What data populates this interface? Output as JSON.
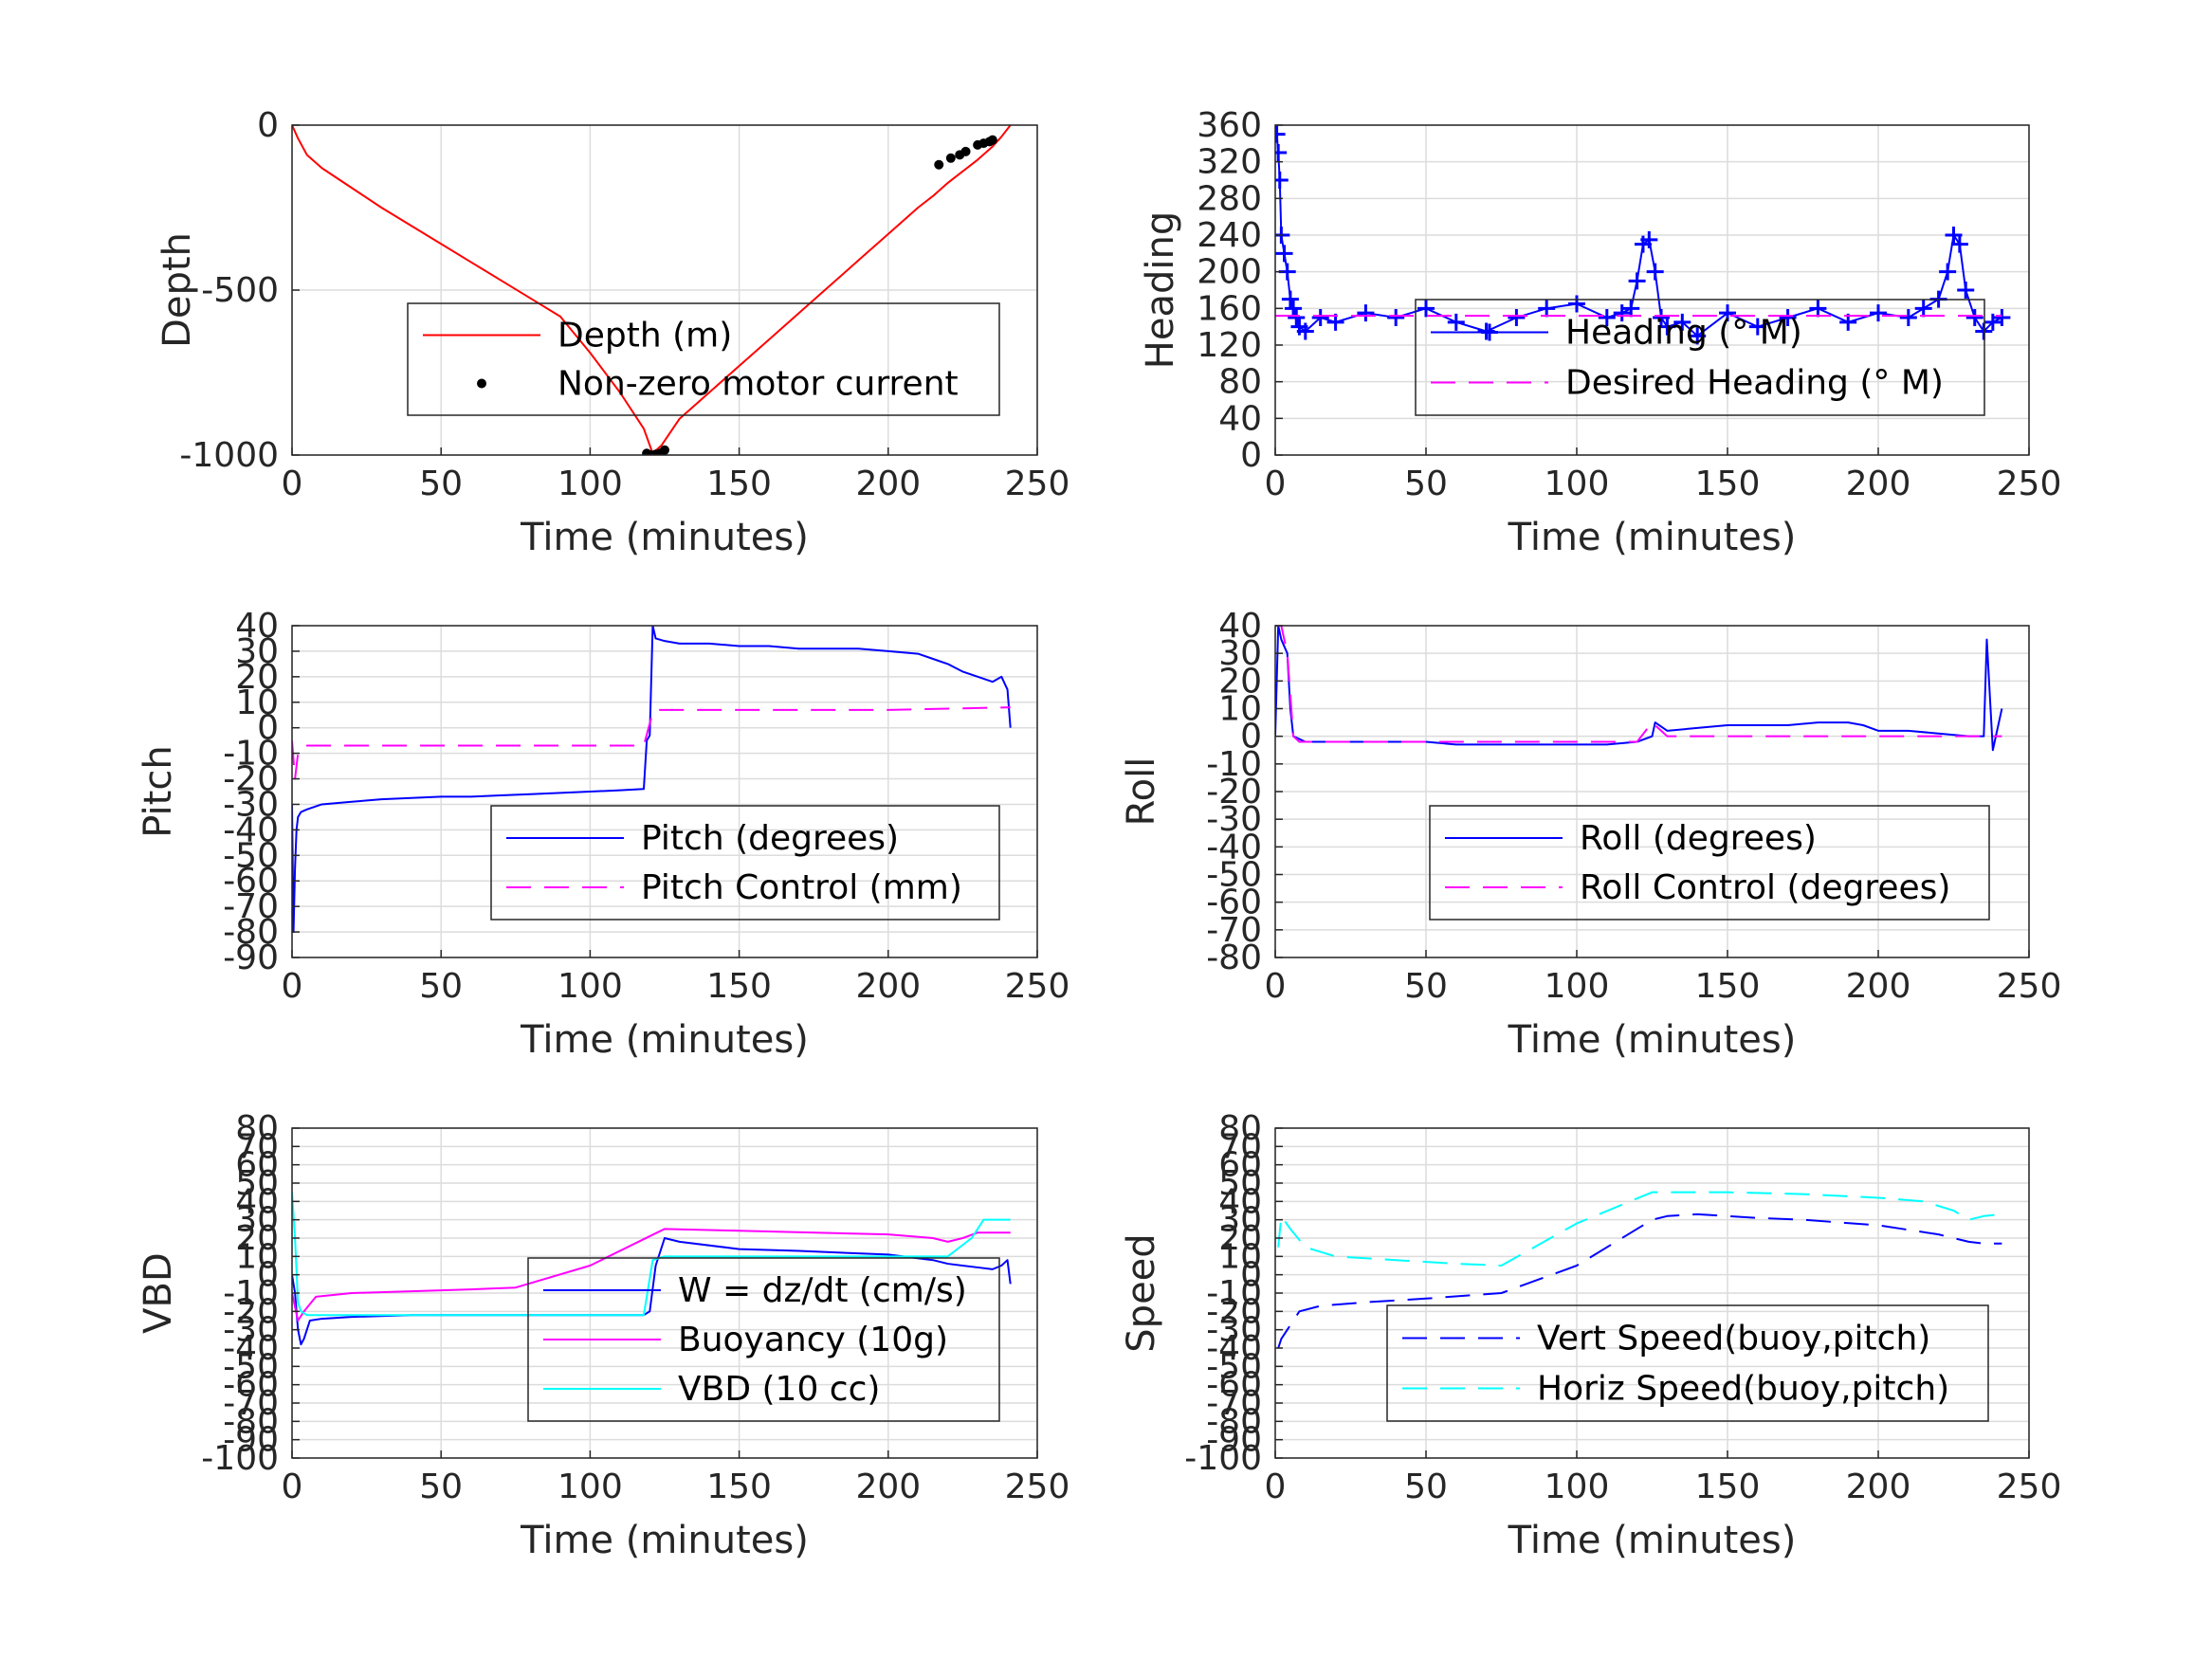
{
  "chart_data": [
    {
      "id": "depth",
      "type": "line",
      "xlabel": "Time (minutes)",
      "ylabel": "Depth",
      "xlim": [
        0,
        250
      ],
      "ylim": [
        -1000,
        0
      ],
      "xticks": [
        0,
        50,
        100,
        150,
        200,
        250
      ],
      "yticks": [
        -1000,
        -500,
        0
      ],
      "grid": true,
      "legend": "center-right",
      "series": [
        {
          "name": "Depth (m)",
          "color": "#ff0000",
          "style": "solid",
          "x": [
            0,
            2,
            5,
            10,
            20,
            30,
            40,
            50,
            60,
            70,
            80,
            90,
            100,
            110,
            118,
            121,
            124,
            130,
            140,
            150,
            160,
            170,
            180,
            190,
            200,
            210,
            215,
            220,
            225,
            230,
            235,
            238,
            241
          ],
          "y": [
            0,
            -40,
            -90,
            -130,
            -190,
            -250,
            -305,
            -360,
            -415,
            -470,
            -525,
            -580,
            -690,
            -810,
            -920,
            -995,
            -970,
            -890,
            -810,
            -730,
            -650,
            -570,
            -490,
            -410,
            -330,
            -250,
            -215,
            -175,
            -140,
            -105,
            -65,
            -35,
            0
          ]
        },
        {
          "name": "Non-zero motor current",
          "color": "#000000",
          "style": "marker",
          "x": [
            119,
            120.5,
            122,
            123.5,
            125,
            217,
            221,
            224,
            226,
            230,
            232,
            234,
            235
          ],
          "y": [
            -995,
            -1000,
            -998,
            -995,
            -985,
            -120,
            -100,
            -90,
            -80,
            -60,
            -55,
            -50,
            -45
          ]
        }
      ]
    },
    {
      "id": "heading",
      "type": "line",
      "xlabel": "Time (minutes)",
      "ylabel": "Heading",
      "xlim": [
        0,
        250
      ],
      "ylim": [
        0,
        360
      ],
      "xticks": [
        0,
        50,
        100,
        150,
        200,
        250
      ],
      "yticks": [
        0,
        40,
        80,
        120,
        160,
        200,
        240,
        280,
        320,
        360
      ],
      "grid": true,
      "legend": "center-right",
      "series": [
        {
          "name": "Heading (° M)",
          "color": "#0000ff",
          "style": "plus",
          "x": [
            0.5,
            1,
            1.5,
            2,
            3,
            4,
            5,
            6,
            7,
            8,
            10,
            15,
            20,
            30,
            40,
            50,
            60,
            70,
            80,
            90,
            100,
            110,
            115,
            118,
            120,
            122,
            124,
            126,
            128,
            130,
            135,
            140,
            150,
            160,
            170,
            180,
            190,
            200,
            210,
            215,
            220,
            223,
            225,
            227,
            229,
            232,
            235,
            238,
            241
          ],
          "y": [
            350,
            330,
            300,
            240,
            220,
            200,
            170,
            160,
            150,
            140,
            135,
            150,
            145,
            155,
            150,
            160,
            145,
            135,
            150,
            160,
            165,
            150,
            155,
            160,
            190,
            230,
            235,
            200,
            150,
            140,
            145,
            130,
            155,
            140,
            150,
            160,
            145,
            155,
            150,
            160,
            170,
            200,
            240,
            230,
            180,
            150,
            135,
            145,
            150
          ]
        },
        {
          "name": "Desired Heading (° M)",
          "color": "#ff00ff",
          "style": "dashed",
          "x": [
            0,
            241
          ],
          "y": [
            152,
            152
          ]
        }
      ]
    },
    {
      "id": "pitch",
      "type": "line",
      "xlabel": "Time (minutes)",
      "ylabel": "Pitch",
      "xlim": [
        0,
        250
      ],
      "ylim": [
        -90,
        40
      ],
      "xticks": [
        0,
        50,
        100,
        150,
        200,
        250
      ],
      "yticks": [
        -90,
        -80,
        -70,
        -60,
        -50,
        -40,
        -30,
        -20,
        -10,
        0,
        10,
        20,
        30,
        40
      ],
      "grid": true,
      "legend": "center-right",
      "series": [
        {
          "name": "Pitch (degrees)",
          "color": "#0000ff",
          "style": "solid",
          "x": [
            0,
            0.5,
            1,
            1.5,
            2,
            3,
            5,
            10,
            20,
            30,
            40,
            50,
            60,
            70,
            80,
            90,
            100,
            110,
            118,
            119,
            120,
            121,
            122,
            125,
            130,
            140,
            150,
            160,
            170,
            180,
            190,
            200,
            210,
            215,
            220,
            225,
            230,
            235,
            238,
            240,
            241
          ],
          "y": [
            -30,
            -80,
            -55,
            -40,
            -35,
            -33,
            -32,
            -30,
            -29,
            -28,
            -27.5,
            -27,
            -27,
            -26.5,
            -26,
            -25.5,
            -25,
            -24.5,
            -24,
            -5,
            -3,
            40,
            35,
            34,
            33,
            33,
            32,
            32,
            31,
            31,
            31,
            30,
            29,
            27,
            25,
            22,
            20,
            18,
            20,
            15,
            0
          ]
        },
        {
          "name": "Pitch Control (mm)",
          "color": "#ff00ff",
          "style": "dashed",
          "x": [
            0,
            1,
            2,
            3,
            5,
            20,
            50,
            100,
            118,
            121,
            122,
            150,
            200,
            241
          ],
          "y": [
            -5,
            -20,
            -10,
            -8,
            -7,
            -7,
            -7,
            -7,
            -7,
            6,
            7,
            7,
            7,
            8
          ]
        }
      ]
    },
    {
      "id": "roll",
      "type": "line",
      "xlabel": "Time (minutes)",
      "ylabel": "Roll",
      "xlim": [
        0,
        250
      ],
      "ylim": [
        -80,
        40
      ],
      "xticks": [
        0,
        50,
        100,
        150,
        200,
        250
      ],
      "yticks": [
        -80,
        -70,
        -60,
        -50,
        -40,
        -30,
        -20,
        -10,
        0,
        10,
        20,
        30,
        40
      ],
      "grid": true,
      "legend": "center-right",
      "series": [
        {
          "name": "Roll (degrees)",
          "color": "#0000ff",
          "style": "solid",
          "x": [
            0,
            1,
            2,
            4,
            5,
            6,
            8,
            10,
            20,
            30,
            40,
            50,
            60,
            70,
            80,
            90,
            100,
            110,
            120,
            125,
            126,
            130,
            140,
            150,
            160,
            170,
            180,
            190,
            195,
            200,
            210,
            220,
            230,
            235,
            236,
            238,
            240,
            241
          ],
          "y": [
            0,
            40,
            35,
            30,
            10,
            0,
            -1,
            -2,
            -2,
            -2,
            -2,
            -2,
            -3,
            -3,
            -3,
            -3,
            -3,
            -3,
            -2,
            0,
            5,
            2,
            3,
            4,
            4,
            4,
            5,
            5,
            4,
            2,
            2,
            1,
            0,
            0,
            35,
            -5,
            5,
            10
          ]
        },
        {
          "name": "Roll Control (degrees)",
          "color": "#ff00ff",
          "style": "dashed",
          "x": [
            0,
            2,
            4,
            6,
            8,
            10,
            20,
            40,
            60,
            80,
            100,
            110,
            120,
            125,
            130,
            150,
            170,
            190,
            200,
            220,
            230,
            241
          ],
          "y": [
            40,
            40,
            30,
            0,
            -2,
            -2,
            -2,
            -2,
            -2,
            -2,
            -2,
            -2,
            -2,
            5,
            0,
            0,
            0,
            0,
            0,
            0,
            0,
            0
          ]
        }
      ]
    },
    {
      "id": "vbd",
      "type": "line",
      "xlabel": "Time (minutes)",
      "ylabel": "VBD",
      "xlim": [
        0,
        250
      ],
      "ylim": [
        -100,
        80
      ],
      "xticks": [
        0,
        50,
        100,
        150,
        200,
        250
      ],
      "yticks": [
        -100,
        -90,
        -80,
        -70,
        -60,
        -50,
        -40,
        -30,
        -20,
        -10,
        0,
        10,
        20,
        30,
        40,
        50,
        60,
        70,
        80
      ],
      "grid": true,
      "legend": "center-right",
      "series": [
        {
          "name": "W = dz/dt (cm/s)",
          "color": "#0000ff",
          "style": "solid",
          "x": [
            0,
            1,
            2,
            3,
            4,
            6,
            10,
            20,
            40,
            60,
            80,
            100,
            110,
            118,
            120,
            122,
            125,
            130,
            150,
            170,
            200,
            215,
            220,
            230,
            235,
            238,
            240,
            241
          ],
          "y": [
            0,
            -10,
            -30,
            -38,
            -35,
            -25,
            -24,
            -23,
            -22,
            -22,
            -22,
            -22,
            -22,
            -22,
            -20,
            5,
            20,
            18,
            14,
            13,
            11,
            8,
            6,
            4,
            3,
            5,
            8,
            -5
          ]
        },
        {
          "name": "Buoyancy (10g)",
          "color": "#ff00ff",
          "style": "solid",
          "x": [
            0,
            2,
            4,
            8,
            20,
            40,
            60,
            75,
            100,
            125,
            150,
            200,
            215,
            220,
            225,
            230,
            241
          ],
          "y": [
            -10,
            -25,
            -20,
            -12,
            -10,
            -9,
            -8,
            -7,
            5,
            25,
            24,
            22,
            20,
            18,
            20,
            23,
            23
          ]
        },
        {
          "name": "VBD (10 cc)",
          "color": "#00ffff",
          "style": "solid",
          "x": [
            0,
            1,
            2,
            3,
            5,
            10,
            50,
            110,
            118,
            121,
            125,
            150,
            200,
            220,
            228,
            232,
            241
          ],
          "y": [
            45,
            20,
            -15,
            -20,
            -22,
            -22,
            -22,
            -22,
            -22,
            8,
            10,
            10,
            10,
            10,
            20,
            30,
            30
          ]
        }
      ]
    },
    {
      "id": "speed",
      "type": "line",
      "xlabel": "Time (minutes)",
      "ylabel": "Speed",
      "xlim": [
        0,
        250
      ],
      "ylim": [
        -100,
        80
      ],
      "xticks": [
        0,
        50,
        100,
        150,
        200,
        250
      ],
      "yticks": [
        -100,
        -90,
        -80,
        -70,
        -60,
        -50,
        -40,
        -30,
        -20,
        -10,
        0,
        10,
        20,
        30,
        40,
        50,
        60,
        70,
        80
      ],
      "grid": true,
      "legend": "bottom-center",
      "series": [
        {
          "name": "Vert Speed(buoy,pitch)",
          "color": "#0000ff",
          "style": "dashed",
          "x": [
            1,
            2,
            4,
            8,
            15,
            30,
            50,
            75,
            100,
            125,
            130,
            140,
            150,
            160,
            175,
            200,
            220,
            225,
            230,
            235,
            241
          ],
          "y": [
            -40,
            -35,
            -30,
            -20,
            -17,
            -15,
            -13,
            -10,
            5,
            30,
            32,
            33,
            32,
            31,
            30,
            27,
            22,
            20,
            18,
            17,
            17
          ]
        },
        {
          "name": "Horiz Speed(buoy,pitch)",
          "color": "#00ffff",
          "style": "dashed",
          "x": [
            1,
            2,
            5,
            10,
            20,
            40,
            60,
            75,
            100,
            125,
            140,
            150,
            175,
            200,
            215,
            225,
            230,
            235,
            241
          ],
          "y": [
            15,
            32,
            25,
            15,
            10,
            8,
            6,
            5,
            28,
            45,
            45,
            45,
            44,
            42,
            40,
            35,
            30,
            32,
            33
          ]
        }
      ]
    }
  ]
}
